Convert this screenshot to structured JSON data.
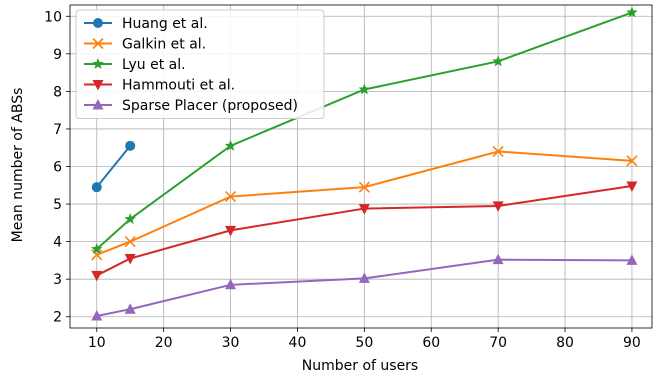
{
  "chart_data": {
    "type": "line",
    "xlabel": "Number of users",
    "ylabel": "Mean number of ABSs",
    "xlim": [
      6,
      93
    ],
    "ylim": [
      1.7,
      10.3
    ],
    "xticks": [
      10,
      20,
      30,
      40,
      50,
      60,
      70,
      80,
      90
    ],
    "yticks": [
      2,
      3,
      4,
      5,
      6,
      7,
      8,
      9,
      10
    ],
    "grid": true,
    "legend_position": "top-left",
    "series": [
      {
        "name": "Huang et al.",
        "color": "#1f77b4",
        "marker": "circle",
        "x": [
          10,
          15
        ],
        "y": [
          5.45,
          6.55
        ]
      },
      {
        "name": "Galkin et al.",
        "color": "#ff7f0e",
        "marker": "x",
        "x": [
          10,
          15,
          30,
          50,
          70,
          90
        ],
        "y": [
          3.65,
          4.0,
          5.2,
          5.45,
          6.4,
          6.15
        ]
      },
      {
        "name": "Lyu et al.",
        "color": "#2ca02c",
        "marker": "star",
        "x": [
          10,
          15,
          30,
          50,
          70,
          90
        ],
        "y": [
          3.8,
          4.6,
          6.55,
          8.05,
          8.8,
          10.1
        ]
      },
      {
        "name": "Hammouti et al.",
        "color": "#d62728",
        "marker": "triangle-down",
        "x": [
          10,
          15,
          30,
          50,
          70,
          90
        ],
        "y": [
          3.1,
          3.55,
          4.3,
          4.88,
          4.95,
          5.48
        ]
      },
      {
        "name": "Sparse Placer (proposed)",
        "color": "#9467bd",
        "marker": "triangle-up",
        "x": [
          10,
          15,
          30,
          50,
          70,
          90
        ],
        "y": [
          2.02,
          2.2,
          2.85,
          3.02,
          3.52,
          3.5
        ]
      }
    ]
  }
}
